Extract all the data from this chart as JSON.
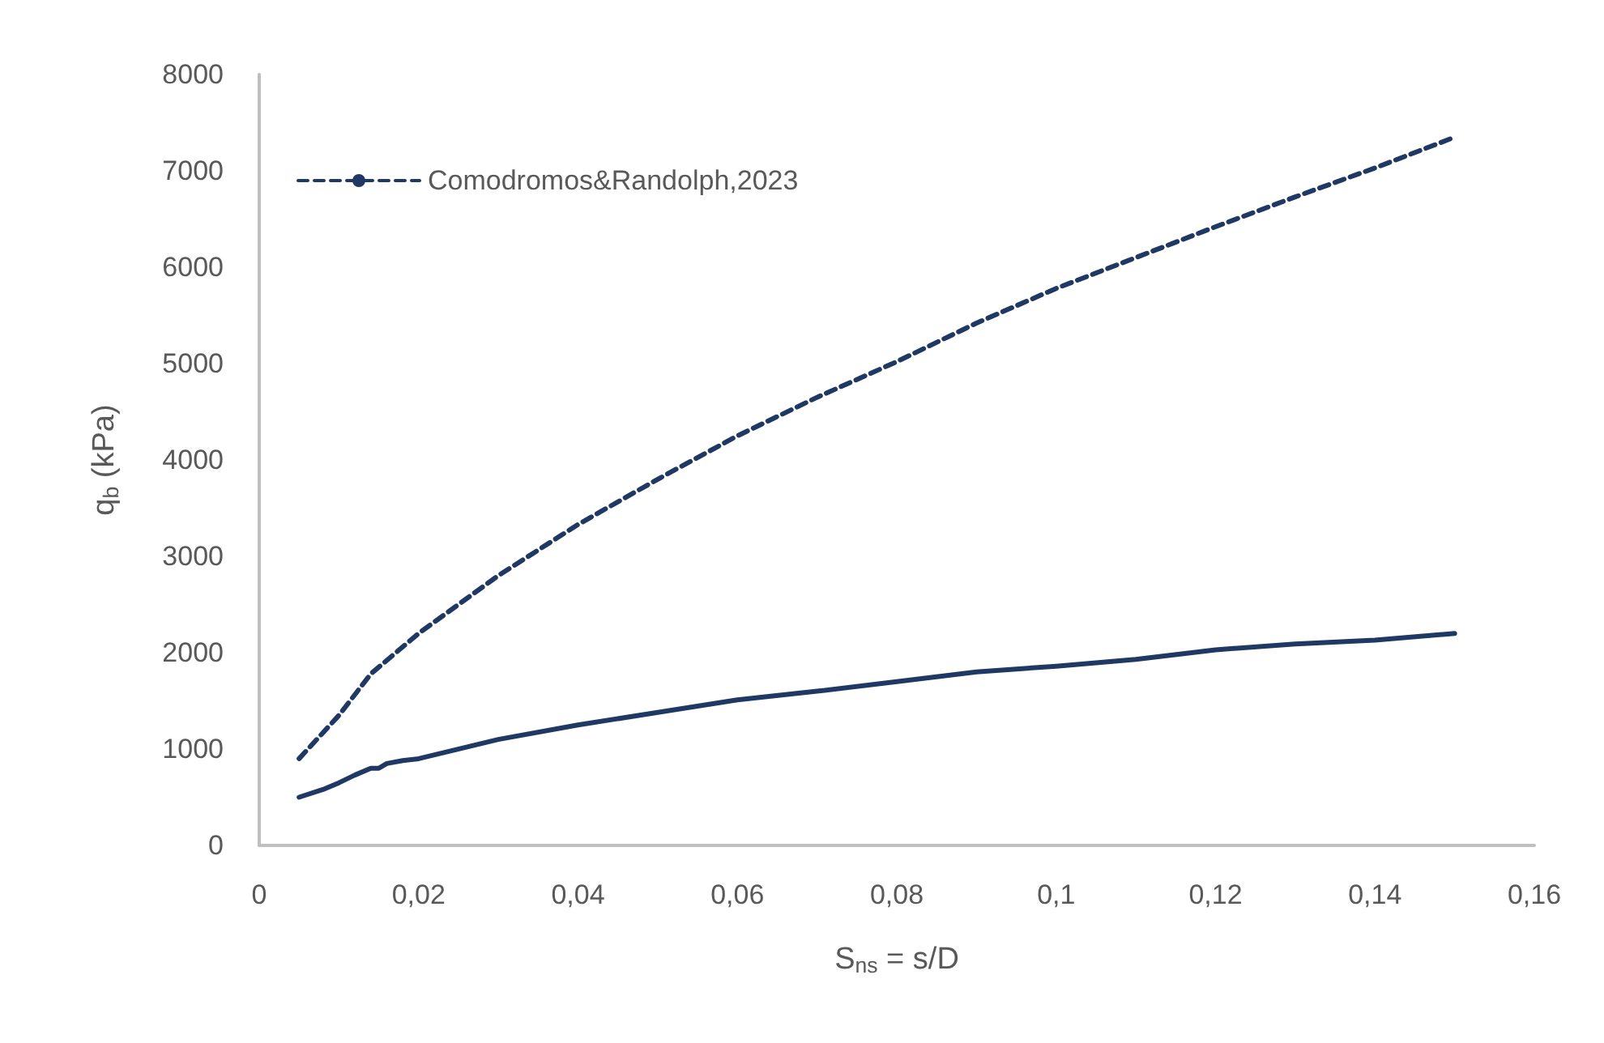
{
  "chart_data": {
    "type": "line",
    "xlabel": "S$_{ns}$ = s/D",
    "ylabel": "q$_{b}$ (kPa)",
    "xlim": [
      0,
      0.16
    ],
    "xticks": [
      0,
      {
        "value": 0.02,
        "label": "0,02"
      },
      {
        "value": 0.04,
        "label": "0,04"
      },
      {
        "value": 0.06,
        "label": "0,06"
      },
      {
        "value": 0.08,
        "label": "0,08"
      },
      {
        "value": 0.1,
        "label": "0,1"
      },
      {
        "value": 0.12,
        "label": "0,12"
      },
      {
        "value": 0.14,
        "label": "0,14"
      },
      {
        "value": 0.16,
        "label": "0,16"
      }
    ],
    "ylim": [
      0,
      8000
    ],
    "yticks": [
      0,
      1000,
      2000,
      3000,
      4000,
      5000,
      6000,
      7000,
      8000
    ],
    "grid": false,
    "legend": "top left",
    "marker": "none",
    "series": [
      {
        "name": "Comodromos&Randolph,2023",
        "color": "#203864",
        "line_style": "dashed",
        "x": [
          0.005,
          0.01,
          0.014,
          0.02,
          0.03,
          0.04,
          0.05,
          0.06,
          0.07,
          0.08,
          0.09,
          0.1,
          0.11,
          0.12,
          0.13,
          0.14,
          0.15
        ],
        "values": [
          900,
          1350,
          1780,
          2200,
          2800,
          3330,
          3800,
          4250,
          4650,
          5020,
          5420,
          5780,
          6100,
          6420,
          6730,
          7030,
          7350
        ]
      },
      {
        "color": "#203864",
        "line_style": "solid",
        "x": [
          0.005,
          0.008,
          0.01,
          0.012,
          0.014,
          0.015,
          0.016,
          0.018,
          0.02,
          0.03,
          0.04,
          0.05,
          0.06,
          0.07,
          0.08,
          0.09,
          0.1,
          0.11,
          0.12,
          0.13,
          0.14,
          0.15
        ],
        "values": [
          500,
          580,
          650,
          730,
          800,
          800,
          850,
          880,
          900,
          1100,
          1250,
          1380,
          1510,
          1600,
          1700,
          1800,
          1860,
          1930,
          2030,
          2090,
          2130,
          2200
        ]
      }
    ]
  }
}
